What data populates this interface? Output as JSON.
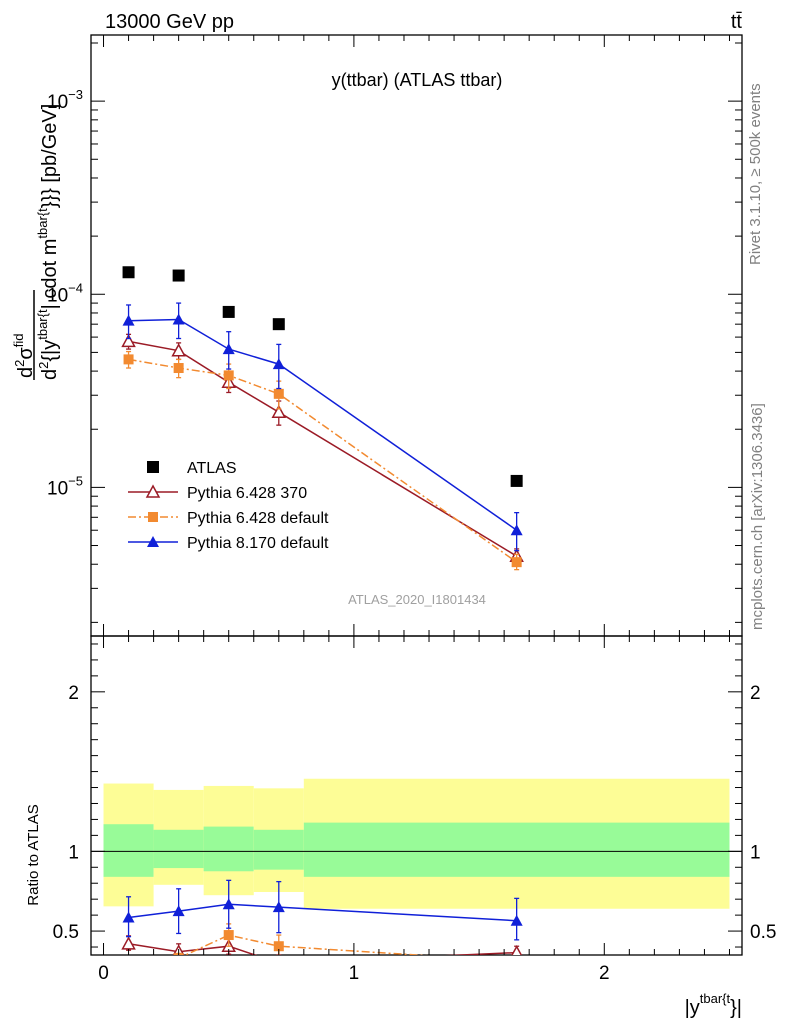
{
  "header": {
    "energy_label": "13000 GeV pp",
    "process_label": "tt̄"
  },
  "side_labels": {
    "rivet": "Rivet 3.1.10, ≥ 500k events",
    "site": "mcplots.cern.ch [arXiv:1306.3436]"
  },
  "chart_data": [
    {
      "type": "line",
      "title": "y(ttbar) (ATLAS ttbar)",
      "watermark": "ATLAS_2020_I1801434",
      "ylabel": {
        "d1": "d",
        "sup1": "2",
        "sigma": "σ",
        "sup_fid": "fid",
        "den_prefix": "d",
        "sup2": "2",
        "den_rest": "{|y",
        "sup_sub": "tbar{t",
        "mid_rest": "| cdot m",
        "sup_m": "tbar{t",
        "tail": "}}} [pb/GeV]"
      },
      "y_scale": "log",
      "ylim": [
        1.7e-06,
        0.0022
      ],
      "xlim": [
        -0.05,
        2.55
      ],
      "y_ticks": [
        {
          "value": 1e-05,
          "base": "10",
          "exp": "−5"
        },
        {
          "value": 0.0001,
          "base": "10",
          "exp": "−4"
        },
        {
          "value": 0.001,
          "base": "10",
          "exp": "−3"
        }
      ],
      "x": [
        0.1,
        0.3,
        0.5,
        0.7,
        1.65
      ],
      "series": [
        {
          "name": "ATLAS",
          "color": "#000000",
          "marker": "filled-square",
          "line": "none",
          "values": [
            0.00013,
            0.000125,
            8.1e-05,
            7e-05,
            1.08e-05
          ],
          "err_lo": [
            0,
            0,
            0,
            0,
            0
          ],
          "err_hi": [
            0,
            0,
            0,
            0,
            0
          ]
        },
        {
          "name": "Pythia 6.428 370",
          "color": "#9b1b26",
          "marker": "open-triangle",
          "line": "solid",
          "values": [
            5.7e-05,
            5.1e-05,
            3.5e-05,
            2.45e-05,
            4.4e-06
          ],
          "err_lo": [
            5e-06,
            5e-06,
            4e-06,
            3.5e-06,
            3e-07
          ],
          "err_hi": [
            5e-06,
            5e-06,
            4e-06,
            3.5e-06,
            4e-07
          ]
        },
        {
          "name": "Pythia 6.428 default",
          "color": "#f28a30",
          "marker": "filled-square",
          "line": "dashdot",
          "values": [
            4.6e-05,
            4.15e-05,
            3.8e-05,
            3.05e-05,
            4.1e-06
          ],
          "err_lo": [
            4.5e-06,
            4.5e-06,
            5.5e-06,
            5e-06,
            3.5e-07
          ],
          "err_hi": [
            4.5e-06,
            4.5e-06,
            5.5e-06,
            5e-06,
            4e-07
          ]
        },
        {
          "name": "Pythia 8.170 default",
          "color": "#1020d8",
          "marker": "filled-triangle",
          "line": "solid",
          "values": [
            7.3e-05,
            7.4e-05,
            5.2e-05,
            4.35e-05,
            6e-06
          ],
          "err_lo": [
            1.4e-05,
            1.5e-05,
            1.1e-05,
            1.1e-05,
            1.3e-06
          ],
          "err_hi": [
            1.5e-05,
            1.6e-05,
            1.2e-05,
            1.15e-05,
            1.4e-06
          ]
        }
      ],
      "legend": {
        "placement": "lower-left"
      }
    },
    {
      "type": "line",
      "ylabel": "Ratio to ATLAS",
      "xlabel": {
        "base": "|y",
        "sup": "tbar{t",
        "tail": "}|"
      },
      "ylim": [
        0.35,
        2.35
      ],
      "xlim": [
        -0.05,
        2.55
      ],
      "y_ticks": [
        0.5,
        1,
        2
      ],
      "x_ticks": [
        {
          "value": 0,
          "label": "0"
        },
        {
          "value": 1,
          "label": "1"
        },
        {
          "value": 2,
          "label": "2"
        }
      ],
      "reference_line": 1.0,
      "bands": {
        "edges": [
          0.0,
          0.2,
          0.4,
          0.6,
          0.8,
          2.5
        ],
        "yellow_lo": [
          0.655,
          0.79,
          0.725,
          0.745,
          0.64
        ],
        "yellow_hi": [
          1.425,
          1.385,
          1.41,
          1.395,
          1.455
        ],
        "green_lo": [
          0.84,
          0.895,
          0.875,
          0.885,
          0.84
        ],
        "green_hi": [
          1.17,
          1.135,
          1.155,
          1.135,
          1.18
        ],
        "yellow_color": "#fdfd96",
        "green_color": "#98fb98"
      },
      "x": [
        0.1,
        0.3,
        0.5,
        0.7,
        1.65
      ],
      "series": [
        {
          "name": "Pythia 6.428 370",
          "color": "#9b1b26",
          "marker": "open-triangle",
          "line": "solid",
          "values": [
            0.42,
            0.37,
            0.405,
            0.3,
            0.365
          ],
          "err_lo": [
            0.04,
            0.04,
            0.05,
            0.05,
            0.03
          ],
          "err_hi": [
            0.05,
            0.05,
            0.05,
            0.05,
            0.04
          ]
        },
        {
          "name": "Pythia 6.428 default",
          "color": "#f28a30",
          "marker": "filled-square",
          "line": "dashdot",
          "values": [
            0.285,
            0.33,
            0.475,
            0.405,
            0.31
          ],
          "err_lo": [
            0.03,
            0.03,
            0.07,
            0.07,
            0.03
          ],
          "err_hi": [
            0.03,
            0.03,
            0.07,
            0.07,
            0.03
          ]
        },
        {
          "name": "Pythia 8.170 default",
          "color": "#1020d8",
          "marker": "filled-triangle",
          "line": "solid",
          "values": [
            0.585,
            0.625,
            0.668,
            0.65,
            0.565
          ],
          "err_lo": [
            0.12,
            0.14,
            0.15,
            0.16,
            0.12
          ],
          "err_hi": [
            0.13,
            0.14,
            0.15,
            0.16,
            0.14
          ]
        }
      ]
    }
  ]
}
